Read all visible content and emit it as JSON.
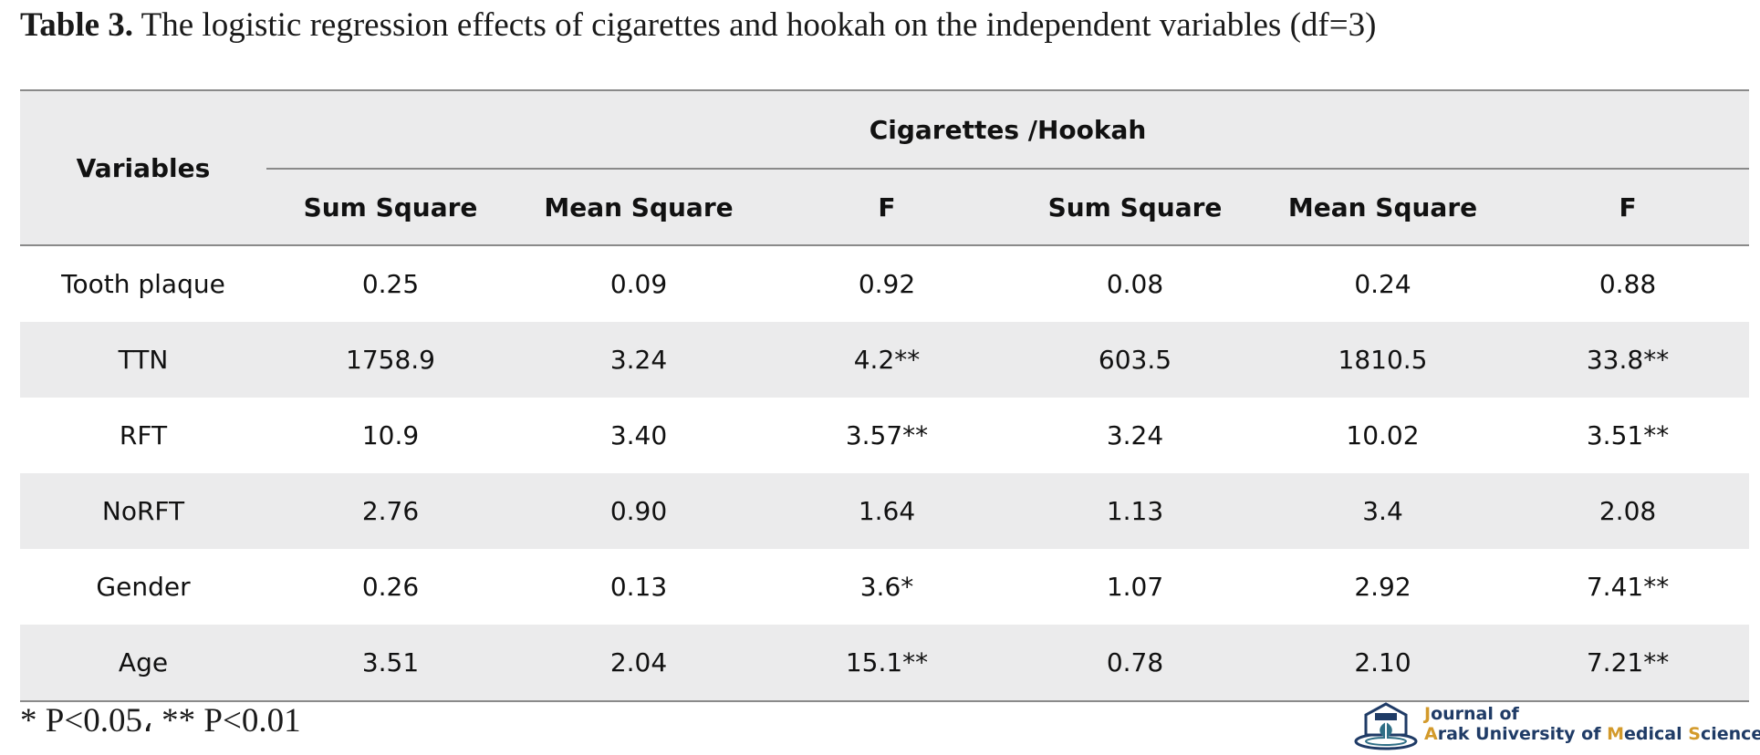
{
  "caption": {
    "label": "Table 3.",
    "text": " The logistic regression effects of cigarettes and hookah on the independent variables (df=3)"
  },
  "table": {
    "variables_header": "Variables",
    "group_header": "Cigarettes /Hookah",
    "subheaders": [
      "Sum Square",
      "Mean Square",
      "F",
      "Sum Square",
      "Mean Square",
      "F"
    ],
    "rows": [
      {
        "variable": "Tooth plaque",
        "values": [
          "0.25",
          "0.09",
          "0.92",
          "0.08",
          "0.24",
          "0.88"
        ]
      },
      {
        "variable": "TTN",
        "values": [
          "1758.9",
          "3.24",
          "4.2**",
          "603.5",
          "1810.5",
          "33.8**"
        ]
      },
      {
        "variable": "RFT",
        "values": [
          "10.9",
          "3.40",
          "3.57**",
          "3.24",
          "10.02",
          "3.51**"
        ]
      },
      {
        "variable": "NoRFT",
        "values": [
          "2.76",
          "0.90",
          "1.64",
          "1.13",
          "3.4",
          "2.08"
        ]
      },
      {
        "variable": "Gender",
        "values": [
          "0.26",
          "0.13",
          "3.6*",
          "1.07",
          "2.92",
          "7.41**"
        ]
      },
      {
        "variable": "Age",
        "values": [
          "3.51",
          "2.04",
          "15.1**",
          "0.78",
          "2.10",
          "7.21**"
        ]
      }
    ]
  },
  "footnote": "* P<0.05، ** P<0.01",
  "journal": {
    "line1_first": "J",
    "line1_rest": "ournal of",
    "line2_a": "A",
    "line2_b": "rak University of ",
    "line2_c": "M",
    "line2_d": "edical ",
    "line2_e": "S",
    "line2_f": "ciences",
    "logo_icon": "journal-emblem-icon",
    "colors": {
      "navy": "#1f3b66",
      "gold": "#d39a2b",
      "teal": "#2f6f86"
    }
  }
}
